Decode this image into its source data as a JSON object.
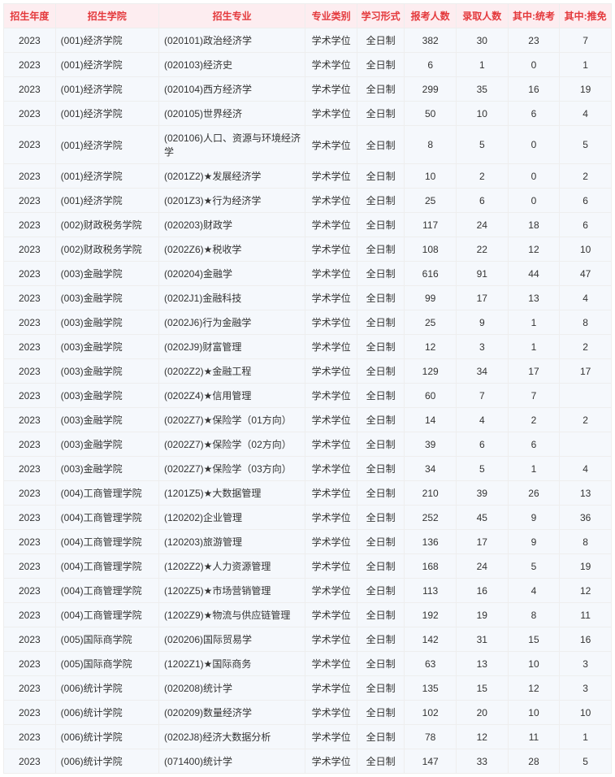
{
  "table": {
    "header_bg": "#fdedf0",
    "header_color": "#e4393c",
    "row_bg": "#f5f8fc",
    "border_color": "#eeeeee",
    "font_size": 12,
    "columns": [
      {
        "key": "year",
        "label": "招生年度",
        "align": "center"
      },
      {
        "key": "college",
        "label": "招生学院",
        "align": "left"
      },
      {
        "key": "major",
        "label": "招生专业",
        "align": "left"
      },
      {
        "key": "degree",
        "label": "专业类别",
        "align": "center"
      },
      {
        "key": "mode",
        "label": "学习形式",
        "align": "center"
      },
      {
        "key": "applied",
        "label": "报考人数",
        "align": "center"
      },
      {
        "key": "admitted",
        "label": "录取人数",
        "align": "center"
      },
      {
        "key": "exam",
        "label": "其中:统考",
        "align": "center"
      },
      {
        "key": "rec",
        "label": "其中:推免",
        "align": "center"
      }
    ],
    "rows": [
      {
        "year": "2023",
        "college": "(001)经济学院",
        "major": "(020101)政治经济学",
        "degree": "学术学位",
        "mode": "全日制",
        "applied": "382",
        "admitted": "30",
        "exam": "23",
        "rec": "7"
      },
      {
        "year": "2023",
        "college": "(001)经济学院",
        "major": "(020103)经济史",
        "degree": "学术学位",
        "mode": "全日制",
        "applied": "6",
        "admitted": "1",
        "exam": "0",
        "rec": "1"
      },
      {
        "year": "2023",
        "college": "(001)经济学院",
        "major": "(020104)西方经济学",
        "degree": "学术学位",
        "mode": "全日制",
        "applied": "299",
        "admitted": "35",
        "exam": "16",
        "rec": "19"
      },
      {
        "year": "2023",
        "college": "(001)经济学院",
        "major": "(020105)世界经济",
        "degree": "学术学位",
        "mode": "全日制",
        "applied": "50",
        "admitted": "10",
        "exam": "6",
        "rec": "4"
      },
      {
        "year": "2023",
        "college": "(001)经济学院",
        "major": "(020106)人口、资源与环境经济学",
        "degree": "学术学位",
        "mode": "全日制",
        "applied": "8",
        "admitted": "5",
        "exam": "0",
        "rec": "5"
      },
      {
        "year": "2023",
        "college": "(001)经济学院",
        "major": "(0201Z2)★发展经济学",
        "degree": "学术学位",
        "mode": "全日制",
        "applied": "10",
        "admitted": "2",
        "exam": "0",
        "rec": "2"
      },
      {
        "year": "2023",
        "college": "(001)经济学院",
        "major": "(0201Z3)★行为经济学",
        "degree": "学术学位",
        "mode": "全日制",
        "applied": "25",
        "admitted": "6",
        "exam": "0",
        "rec": "6"
      },
      {
        "year": "2023",
        "college": "(002)财政税务学院",
        "major": "(020203)财政学",
        "degree": "学术学位",
        "mode": "全日制",
        "applied": "117",
        "admitted": "24",
        "exam": "18",
        "rec": "6"
      },
      {
        "year": "2023",
        "college": "(002)财政税务学院",
        "major": "(0202Z6)★税收学",
        "degree": "学术学位",
        "mode": "全日制",
        "applied": "108",
        "admitted": "22",
        "exam": "12",
        "rec": "10"
      },
      {
        "year": "2023",
        "college": "(003)金融学院",
        "major": "(020204)金融学",
        "degree": "学术学位",
        "mode": "全日制",
        "applied": "616",
        "admitted": "91",
        "exam": "44",
        "rec": "47"
      },
      {
        "year": "2023",
        "college": "(003)金融学院",
        "major": "(0202J1)金融科技",
        "degree": "学术学位",
        "mode": "全日制",
        "applied": "99",
        "admitted": "17",
        "exam": "13",
        "rec": "4"
      },
      {
        "year": "2023",
        "college": "(003)金融学院",
        "major": "(0202J6)行为金融学",
        "degree": "学术学位",
        "mode": "全日制",
        "applied": "25",
        "admitted": "9",
        "exam": "1",
        "rec": "8"
      },
      {
        "year": "2023",
        "college": "(003)金融学院",
        "major": "(0202J9)财富管理",
        "degree": "学术学位",
        "mode": "全日制",
        "applied": "12",
        "admitted": "3",
        "exam": "1",
        "rec": "2"
      },
      {
        "year": "2023",
        "college": "(003)金融学院",
        "major": "(0202Z2)★金融工程",
        "degree": "学术学位",
        "mode": "全日制",
        "applied": "129",
        "admitted": "34",
        "exam": "17",
        "rec": "17"
      },
      {
        "year": "2023",
        "college": "(003)金融学院",
        "major": "(0202Z4)★信用管理",
        "degree": "学术学位",
        "mode": "全日制",
        "applied": "60",
        "admitted": "7",
        "exam": "7",
        "rec": ""
      },
      {
        "year": "2023",
        "college": "(003)金融学院",
        "major": "(0202Z7)★保险学（01方向）",
        "degree": "学术学位",
        "mode": "全日制",
        "applied": "14",
        "admitted": "4",
        "exam": "2",
        "rec": "2"
      },
      {
        "year": "2023",
        "college": "(003)金融学院",
        "major": "(0202Z7)★保险学（02方向）",
        "degree": "学术学位",
        "mode": "全日制",
        "applied": "39",
        "admitted": "6",
        "exam": "6",
        "rec": ""
      },
      {
        "year": "2023",
        "college": "(003)金融学院",
        "major": "(0202Z7)★保险学（03方向）",
        "degree": "学术学位",
        "mode": "全日制",
        "applied": "34",
        "admitted": "5",
        "exam": "1",
        "rec": "4"
      },
      {
        "year": "2023",
        "college": "(004)工商管理学院",
        "major": "(1201Z5)★大数据管理",
        "degree": "学术学位",
        "mode": "全日制",
        "applied": "210",
        "admitted": "39",
        "exam": "26",
        "rec": "13"
      },
      {
        "year": "2023",
        "college": "(004)工商管理学院",
        "major": "(120202)企业管理",
        "degree": "学术学位",
        "mode": "全日制",
        "applied": "252",
        "admitted": "45",
        "exam": "9",
        "rec": "36"
      },
      {
        "year": "2023",
        "college": "(004)工商管理学院",
        "major": "(120203)旅游管理",
        "degree": "学术学位",
        "mode": "全日制",
        "applied": "136",
        "admitted": "17",
        "exam": "9",
        "rec": "8"
      },
      {
        "year": "2023",
        "college": "(004)工商管理学院",
        "major": "(1202Z2)★人力资源管理",
        "degree": "学术学位",
        "mode": "全日制",
        "applied": "168",
        "admitted": "24",
        "exam": "5",
        "rec": "19"
      },
      {
        "year": "2023",
        "college": "(004)工商管理学院",
        "major": "(1202Z5)★市场营销管理",
        "degree": "学术学位",
        "mode": "全日制",
        "applied": "113",
        "admitted": "16",
        "exam": "4",
        "rec": "12"
      },
      {
        "year": "2023",
        "college": "(004)工商管理学院",
        "major": "(1202Z9)★物流与供应链管理",
        "degree": "学术学位",
        "mode": "全日制",
        "applied": "192",
        "admitted": "19",
        "exam": "8",
        "rec": "11"
      },
      {
        "year": "2023",
        "college": "(005)国际商学院",
        "major": "(020206)国际贸易学",
        "degree": "学术学位",
        "mode": "全日制",
        "applied": "142",
        "admitted": "31",
        "exam": "15",
        "rec": "16"
      },
      {
        "year": "2023",
        "college": "(005)国际商学院",
        "major": "(1202Z1)★国际商务",
        "degree": "学术学位",
        "mode": "全日制",
        "applied": "63",
        "admitted": "13",
        "exam": "10",
        "rec": "3"
      },
      {
        "year": "2023",
        "college": "(006)统计学院",
        "major": "(020208)统计学",
        "degree": "学术学位",
        "mode": "全日制",
        "applied": "135",
        "admitted": "15",
        "exam": "12",
        "rec": "3"
      },
      {
        "year": "2023",
        "college": "(006)统计学院",
        "major": "(020209)数量经济学",
        "degree": "学术学位",
        "mode": "全日制",
        "applied": "102",
        "admitted": "20",
        "exam": "10",
        "rec": "10"
      },
      {
        "year": "2023",
        "college": "(006)统计学院",
        "major": "(0202J8)经济大数据分析",
        "degree": "学术学位",
        "mode": "全日制",
        "applied": "78",
        "admitted": "12",
        "exam": "11",
        "rec": "1"
      },
      {
        "year": "2023",
        "college": "(006)统计学院",
        "major": "(071400)统计学",
        "degree": "学术学位",
        "mode": "全日制",
        "applied": "147",
        "admitted": "33",
        "exam": "28",
        "rec": "5"
      }
    ]
  }
}
